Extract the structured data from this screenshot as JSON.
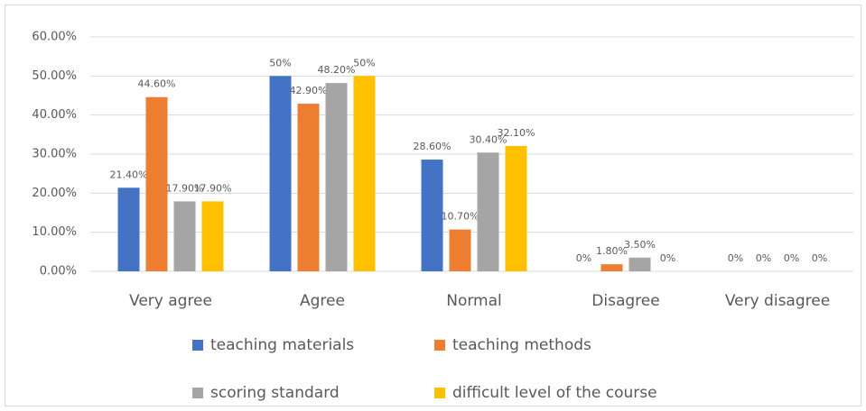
{
  "chart_data": {
    "type": "bar",
    "categories": [
      "Very agree",
      "Agree",
      "Normal",
      "Disagree",
      "Very disagree"
    ],
    "series": [
      {
        "name": "teaching materials",
        "color": "#4472c4",
        "values": [
          21.4,
          50,
          28.6,
          0,
          0
        ],
        "value_labels": [
          "21.40%",
          "50%",
          "28.60%",
          "0%",
          "0%"
        ]
      },
      {
        "name": "teaching methods",
        "color": "#ed7d31",
        "values": [
          44.6,
          42.9,
          10.7,
          1.8,
          0
        ],
        "value_labels": [
          "44.60%",
          "42.90%",
          "10.70%",
          "1.80%",
          "0%"
        ]
      },
      {
        "name": "scoring standard",
        "color": "#a5a5a5",
        "values": [
          17.9,
          48.2,
          30.4,
          3.5,
          0
        ],
        "value_labels": [
          "17.90%",
          "48.20%",
          "30.40%",
          "3.50%",
          "0%"
        ]
      },
      {
        "name": "difficult level of the course",
        "color": "#ffc000",
        "values": [
          17.9,
          50,
          32.1,
          0,
          0
        ],
        "value_labels": [
          "17.90%",
          "50%",
          "32.10%",
          "0%",
          "0%"
        ]
      }
    ],
    "ylim": [
      0,
      60
    ],
    "yticks": [
      {
        "value": 0,
        "label": "0.00%"
      },
      {
        "value": 10,
        "label": "10.00%"
      },
      {
        "value": 20,
        "label": "20.00%"
      },
      {
        "value": 30,
        "label": "30.00%"
      },
      {
        "value": 40,
        "label": "40.00%"
      },
      {
        "value": 50,
        "label": "50.00%"
      },
      {
        "value": 60,
        "label": "60.00%"
      }
    ],
    "grid": true,
    "legend": "bottom"
  }
}
